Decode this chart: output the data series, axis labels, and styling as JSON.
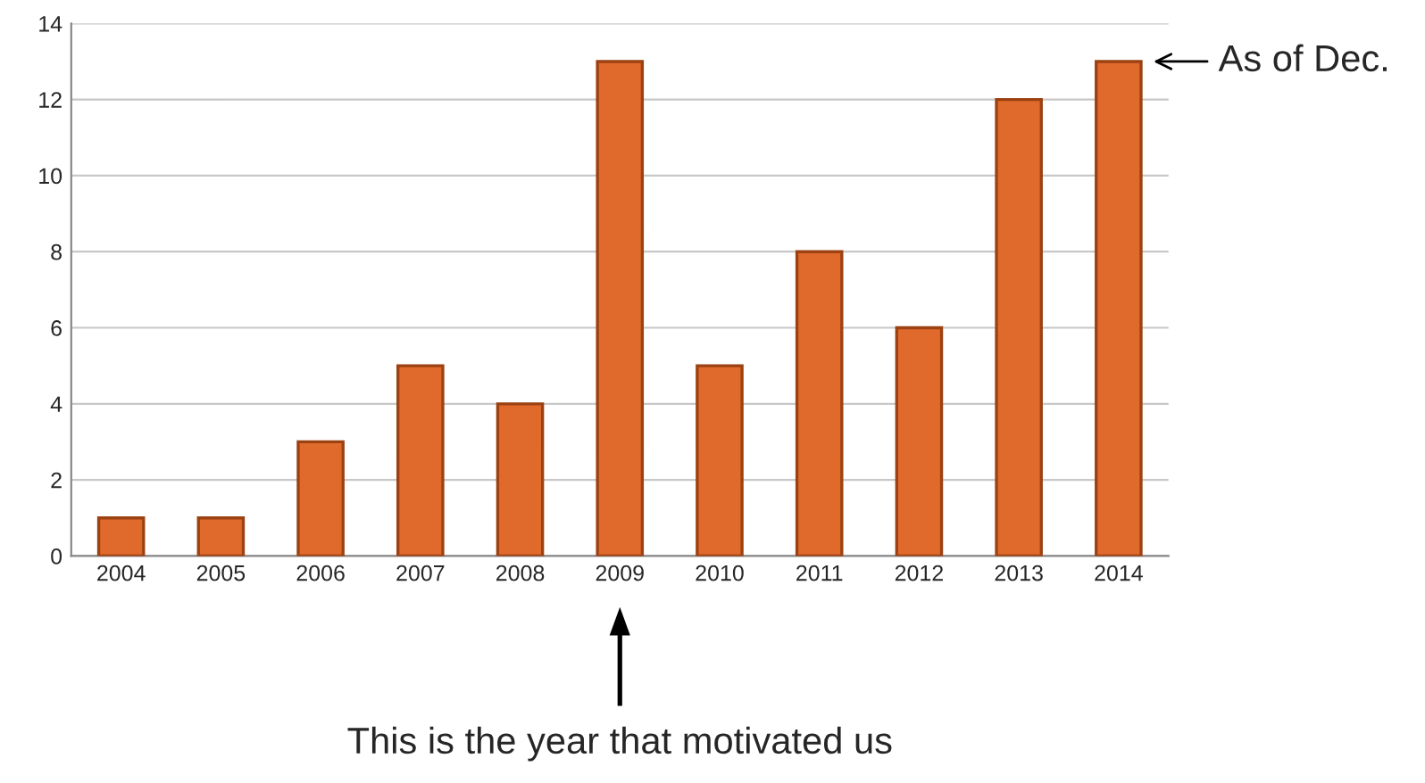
{
  "chart_data": {
    "type": "bar",
    "categories": [
      "2004",
      "2005",
      "2006",
      "2007",
      "2008",
      "2009",
      "2010",
      "2011",
      "2012",
      "2013",
      "2014"
    ],
    "values": [
      1,
      1,
      3,
      5,
      4,
      13,
      5,
      8,
      6,
      12,
      13
    ],
    "color": "#e06a2c",
    "ylim": [
      0,
      14
    ],
    "yticks": [
      0,
      2,
      4,
      6,
      8,
      10,
      12,
      14
    ],
    "grid": "y",
    "annotations": [
      {
        "text": "As of Dec.",
        "x": "2014",
        "y": 13
      },
      "This is the year that motivated us"
    ]
  }
}
